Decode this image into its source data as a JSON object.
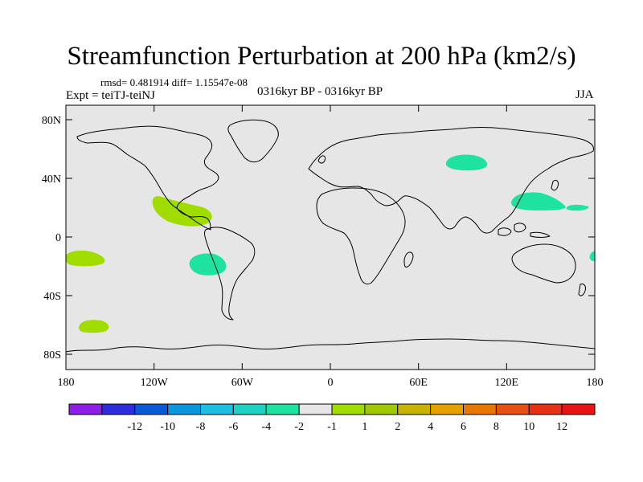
{
  "title": "Streamfunction Perturbation at 200 hPa (km2/s)",
  "stats_text": "rmsd= 0.481914 diff= 1.15547e-08",
  "expt_text": "Expt = teiTJ-teiNJ",
  "period_text": "0316kyr BP - 0316kyr BP",
  "season_text": "JJA",
  "colors": {
    "ocean": "#e6e6e6",
    "coast": "#000000",
    "pos_light": "#a0dc00",
    "neg_light": "#1ee3a0"
  },
  "axes": {
    "lat_labels": [
      "80N",
      "40N",
      "0",
      "40S",
      "80S"
    ],
    "lon_labels": [
      "180",
      "120W",
      "60W",
      "0",
      "60E",
      "120E",
      "180"
    ]
  },
  "colorbar": {
    "colors": [
      "#8c1ee6",
      "#2d2ddc",
      "#0a5ad7",
      "#0a96dc",
      "#1ebee1",
      "#1ed2c3",
      "#1ee3a0",
      "#e6e6e6",
      "#a0dc00",
      "#a0c800",
      "#c8b400",
      "#e6a000",
      "#e67800",
      "#e65014",
      "#e63214",
      "#e61414"
    ],
    "labels": [
      "-12",
      "-10",
      "-8",
      "-6",
      "-4",
      "-2",
      "-1",
      "1",
      "2",
      "4",
      "6",
      "8",
      "10",
      "12"
    ]
  },
  "anomalies": [
    {
      "name": "n-atlantic-pos-anomaly",
      "sign": "positive",
      "lon": -108,
      "lat": 26
    },
    {
      "name": "se-pacific-neg-anomaly",
      "sign": "negative",
      "lon": -88,
      "lat": -20
    },
    {
      "name": "central-asia-neg-anomaly",
      "sign": "negative",
      "lon": 90,
      "lat": 52
    },
    {
      "name": "w-pacific-neg-anomaly",
      "sign": "negative",
      "lon": 138,
      "lat": 27
    },
    {
      "name": "w-pacific-neg-anomaly-small",
      "sign": "negative",
      "lon": 164,
      "lat": 21
    },
    {
      "name": "s-pacific-pos-anomaly",
      "sign": "positive",
      "lon": -165,
      "lat": -15
    },
    {
      "name": "s-pacific-pos-anomaly-south",
      "sign": "positive",
      "lon": -162,
      "lat": -62
    },
    {
      "name": "dateline-neg-anomaly",
      "sign": "negative",
      "lon": 180,
      "lat": -12
    }
  ]
}
